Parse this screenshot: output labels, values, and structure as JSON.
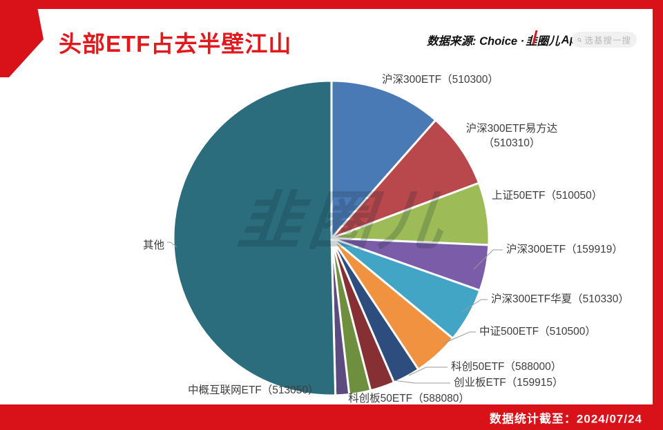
{
  "colors": {
    "accent_red": "#d9121a",
    "title_red": "#e3181d",
    "panel_bg": "#ffffff",
    "label_text": "#3d3d3d"
  },
  "header": {
    "title": "头部ETF占去半壁江山",
    "source_prefix": "数据来源: Choice ·",
    "logo_text": "韭圈儿",
    "logo_suffix": "App",
    "search_placeholder": "选基搜一搜"
  },
  "footer": {
    "note": "数据统计截至：2024/07/24"
  },
  "watermark": "韭圈儿",
  "chart_data": {
    "type": "pie",
    "title": "头部ETF占去半壁江山",
    "value_unit": "percent-of-total (estimated from slice angles, no numeric labels shown)",
    "start_angle_deg": 0,
    "direction": "clockwise",
    "legend_position": "direct-labels-with-leader-lines",
    "slices": [
      {
        "label": "沪深300ETF（510300）",
        "value": 11.5,
        "color": "#4a7ab5"
      },
      {
        "label": "沪深300ETF易方达（510310）",
        "value": 7.8,
        "color": "#b9484c"
      },
      {
        "label": "上证50ETF（510050）",
        "value": 6.4,
        "color": "#9dbc57"
      },
      {
        "label": "沪深300ETF（159919）",
        "value": 4.7,
        "color": "#7b5ca8"
      },
      {
        "label": "沪深300ETF华夏（510330）",
        "value": 5.6,
        "color": "#43a5c5"
      },
      {
        "label": "中证500ETF（510500）",
        "value": 4.7,
        "color": "#f0923f"
      },
      {
        "label": "科创50ETF（588000）",
        "value": 2.8,
        "color": "#2c4d7d"
      },
      {
        "label": "创业板ETF（159915）",
        "value": 2.5,
        "color": "#873034"
      },
      {
        "label": "科创板50ETF（588080）",
        "value": 2.2,
        "color": "#6e8f3d"
      },
      {
        "label": "中概互联网ETF（513050）",
        "value": 1.4,
        "color": "#5c4b7e"
      },
      {
        "label": "其他",
        "value": 50.4,
        "color": "#2b6d7d"
      }
    ]
  }
}
